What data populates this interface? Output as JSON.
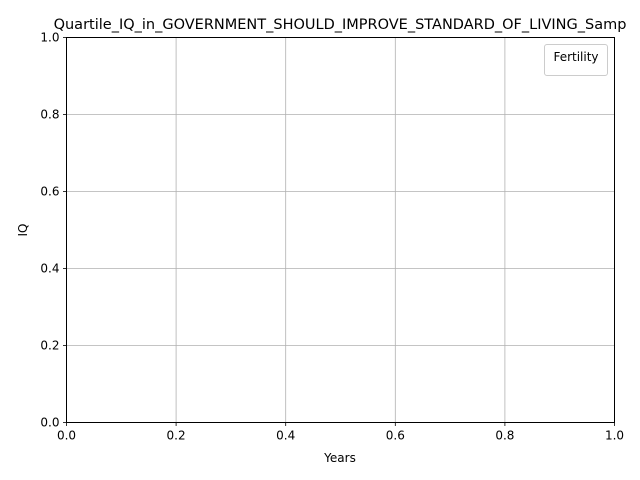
{
  "chart_data": {
    "type": "line",
    "title": "Quartile_IQ_in_GOVERNMENT_SHOULD_IMPROVE_STANDARD_OF_LIVING_Samp",
    "xlabel": "Years",
    "ylabel": "IQ",
    "xlim": [
      0.0,
      1.0
    ],
    "ylim": [
      0.0,
      1.0
    ],
    "x_ticks": [
      "0.0",
      "0.2",
      "0.4",
      "0.6",
      "0.8",
      "1.0"
    ],
    "y_ticks": [
      "0.0",
      "0.2",
      "0.4",
      "0.6",
      "0.8",
      "1.0"
    ],
    "grid": true,
    "legend": {
      "title": "Fertility",
      "placement": "top-right",
      "entries": []
    },
    "series": []
  }
}
